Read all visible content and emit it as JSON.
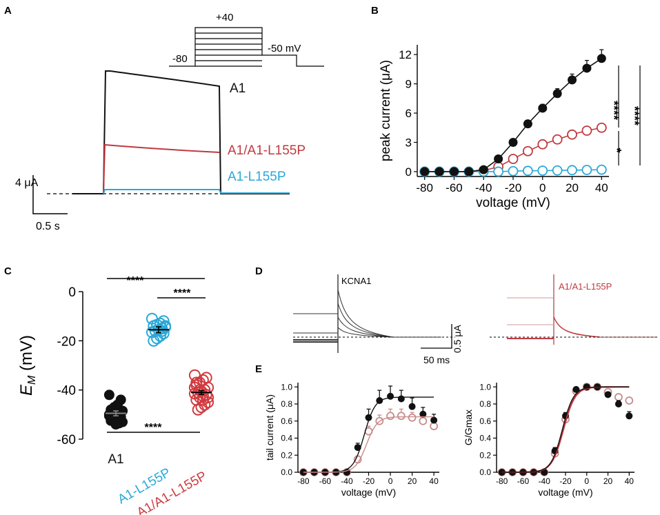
{
  "panels": {
    "A": {
      "label": "A",
      "protocol": {
        "hold": "-80",
        "step": "+40",
        "tail": "-50 mV"
      },
      "traces": [
        {
          "name": "A1",
          "color": "#111111"
        },
        {
          "name": "A1/A1-L155P",
          "color": "#c0393f"
        },
        {
          "name": "A1-L155P",
          "color": "#29a8d8"
        }
      ],
      "scale": {
        "current": "4 μA",
        "time": "0.5 s"
      }
    },
    "B": {
      "label": "B",
      "significance": [
        "****",
        "****",
        "*"
      ]
    },
    "C": {
      "label": "C",
      "significance": [
        "****",
        "****",
        "****"
      ],
      "groups": [
        {
          "name": "A1",
          "color": "#111111"
        },
        {
          "name": "A1-L155P",
          "color": "#29a8d8"
        },
        {
          "name": "A1/A1-L155P",
          "color": "#d03a3f"
        }
      ]
    },
    "D": {
      "label": "D",
      "labels": [
        "KCNA1",
        "A1/A1-L155P"
      ],
      "scale": {
        "current": "0.5 μA",
        "time": "50 ms"
      }
    },
    "E": {
      "label": "E"
    }
  },
  "colors": {
    "a1": "#111111",
    "mix": "#c0393f",
    "mut": "#29a8d8",
    "mix_light": "#c98a8a"
  },
  "chart_data": [
    {
      "id": "B",
      "type": "line",
      "title": "",
      "xlabel": "voltage (mV)",
      "ylabel": "peak current (μA)",
      "xlim": [
        -85,
        45
      ],
      "ylim": [
        -0.5,
        13
      ],
      "xticks": [
        -80,
        -60,
        -40,
        -20,
        0,
        20,
        40
      ],
      "yticks": [
        0,
        3,
        6,
        9,
        12
      ],
      "x": [
        -80,
        -70,
        -60,
        -50,
        -40,
        -30,
        -20,
        -10,
        0,
        10,
        20,
        30,
        40
      ],
      "series": [
        {
          "name": "A1",
          "filled": true,
          "color": "#111111",
          "values": [
            0,
            0,
            0,
            0,
            0.2,
            1.3,
            3.0,
            4.9,
            6.5,
            8.0,
            9.4,
            10.6,
            11.6
          ],
          "errors": [
            0,
            0,
            0,
            0,
            0.1,
            0.2,
            0.3,
            0.3,
            0.4,
            0.5,
            0.6,
            0.8,
            0.9
          ]
        },
        {
          "name": "A1/A1-L155P",
          "filled": false,
          "color": "#c0393f",
          "values": [
            0,
            0,
            0,
            0,
            0.1,
            0.5,
            1.3,
            2.1,
            2.8,
            3.3,
            3.8,
            4.2,
            4.5
          ],
          "errors": []
        },
        {
          "name": "A1-L155P",
          "filled": false,
          "color": "#29a8d8",
          "values": [
            0,
            0,
            0,
            0,
            0,
            0,
            0.05,
            0.08,
            0.1,
            0.12,
            0.15,
            0.17,
            0.2
          ],
          "errors": []
        }
      ]
    },
    {
      "id": "C",
      "type": "scatter",
      "title": "",
      "xlabel": "",
      "ylabel": "EM (mV)",
      "ylim": [
        -60,
        0
      ],
      "yticks": [
        0,
        -20,
        -40,
        -60
      ],
      "categories": [
        "A1",
        "A1-L155P",
        "A1/A1-L155P"
      ],
      "means": [
        -49.5,
        -15.5,
        -41
      ],
      "sems": [
        1.0,
        1.2,
        0.8
      ],
      "points": [
        [
          -42,
          -44,
          -46,
          -47,
          -48,
          -48.5,
          -49,
          -49.5,
          -50,
          -50.5,
          -51,
          -51.5,
          -52,
          -52.5,
          -53,
          -53.5,
          -54,
          -51,
          -50,
          -49
        ],
        [
          -11,
          -12,
          -13,
          -13.5,
          -14,
          -14.5,
          -15,
          -15.5,
          -16,
          -16.5,
          -17,
          -18,
          -19,
          -20,
          -14,
          -16
        ],
        [
          -34,
          -35,
          -36,
          -37,
          -38,
          -39,
          -40,
          -40.5,
          -41,
          -41.5,
          -42,
          -42.5,
          -43,
          -44,
          -45,
          -46,
          -47,
          -48,
          -39,
          -42,
          -44,
          -40,
          -37,
          -43
        ]
      ]
    },
    {
      "id": "E-left",
      "type": "line",
      "title": "",
      "xlabel": "voltage (mV)",
      "ylabel": "tail current (μA)",
      "xlim": [
        -85,
        45
      ],
      "ylim": [
        0,
        1.05
      ],
      "xticks": [
        -80,
        -60,
        -40,
        -20,
        0,
        20,
        40
      ],
      "yticks": [
        0.0,
        0.2,
        0.4,
        0.6,
        0.8,
        1.0
      ],
      "x": [
        -80,
        -70,
        -60,
        -50,
        -40,
        -30,
        -20,
        -10,
        0,
        10,
        20,
        30,
        40
      ],
      "series": [
        {
          "name": "A1",
          "filled": true,
          "color": "#111111",
          "values": [
            0,
            0,
            0,
            0,
            0,
            0.29,
            0.64,
            0.84,
            0.89,
            0.86,
            0.77,
            0.68,
            0.61
          ],
          "errors": [
            0,
            0,
            0,
            0,
            0,
            0.05,
            0.1,
            0.12,
            0.12,
            0.1,
            0.1,
            0.08,
            0.07
          ]
        },
        {
          "name": "A1/A1-L155P",
          "filled": false,
          "color": "#c98a8a",
          "values": [
            0,
            0,
            0,
            0,
            0,
            0.15,
            0.48,
            0.6,
            0.66,
            0.66,
            0.64,
            0.6,
            0.54
          ],
          "errors": [
            0,
            0,
            0,
            0,
            0,
            0.04,
            0.06,
            0.07,
            0.08,
            0.08,
            0.06,
            0.06,
            0.05
          ]
        }
      ]
    },
    {
      "id": "E-right",
      "type": "line",
      "title": "",
      "xlabel": "voltage (mV)",
      "ylabel": "G/Gmax",
      "xlim": [
        -85,
        45
      ],
      "ylim": [
        0,
        1.05
      ],
      "xticks": [
        -80,
        -60,
        -40,
        -20,
        0,
        20,
        40
      ],
      "yticks": [
        0.0,
        0.2,
        0.4,
        0.6,
        0.8,
        1.0
      ],
      "x": [
        -80,
        -70,
        -60,
        -50,
        -40,
        -30,
        -20,
        -10,
        0,
        10,
        20,
        30,
        40
      ],
      "series": [
        {
          "name": "A1",
          "filled": true,
          "color": "#111111",
          "values": [
            0,
            0,
            0,
            0,
            0,
            0.25,
            0.66,
            0.97,
            1.0,
            1.0,
            0.91,
            0.8,
            0.66
          ],
          "errors": [
            0,
            0,
            0,
            0,
            0,
            0.04,
            0.04,
            0.02,
            0,
            0,
            0.03,
            0.04,
            0.05
          ]
        },
        {
          "name": "A1/A1-L155P",
          "filled": false,
          "color": "#c98a8a",
          "values": [
            0,
            0,
            0,
            0,
            0,
            0.22,
            0.62,
            0.95,
            1.0,
            1.0,
            0.94,
            0.88,
            0.84
          ],
          "errors": []
        }
      ]
    }
  ]
}
